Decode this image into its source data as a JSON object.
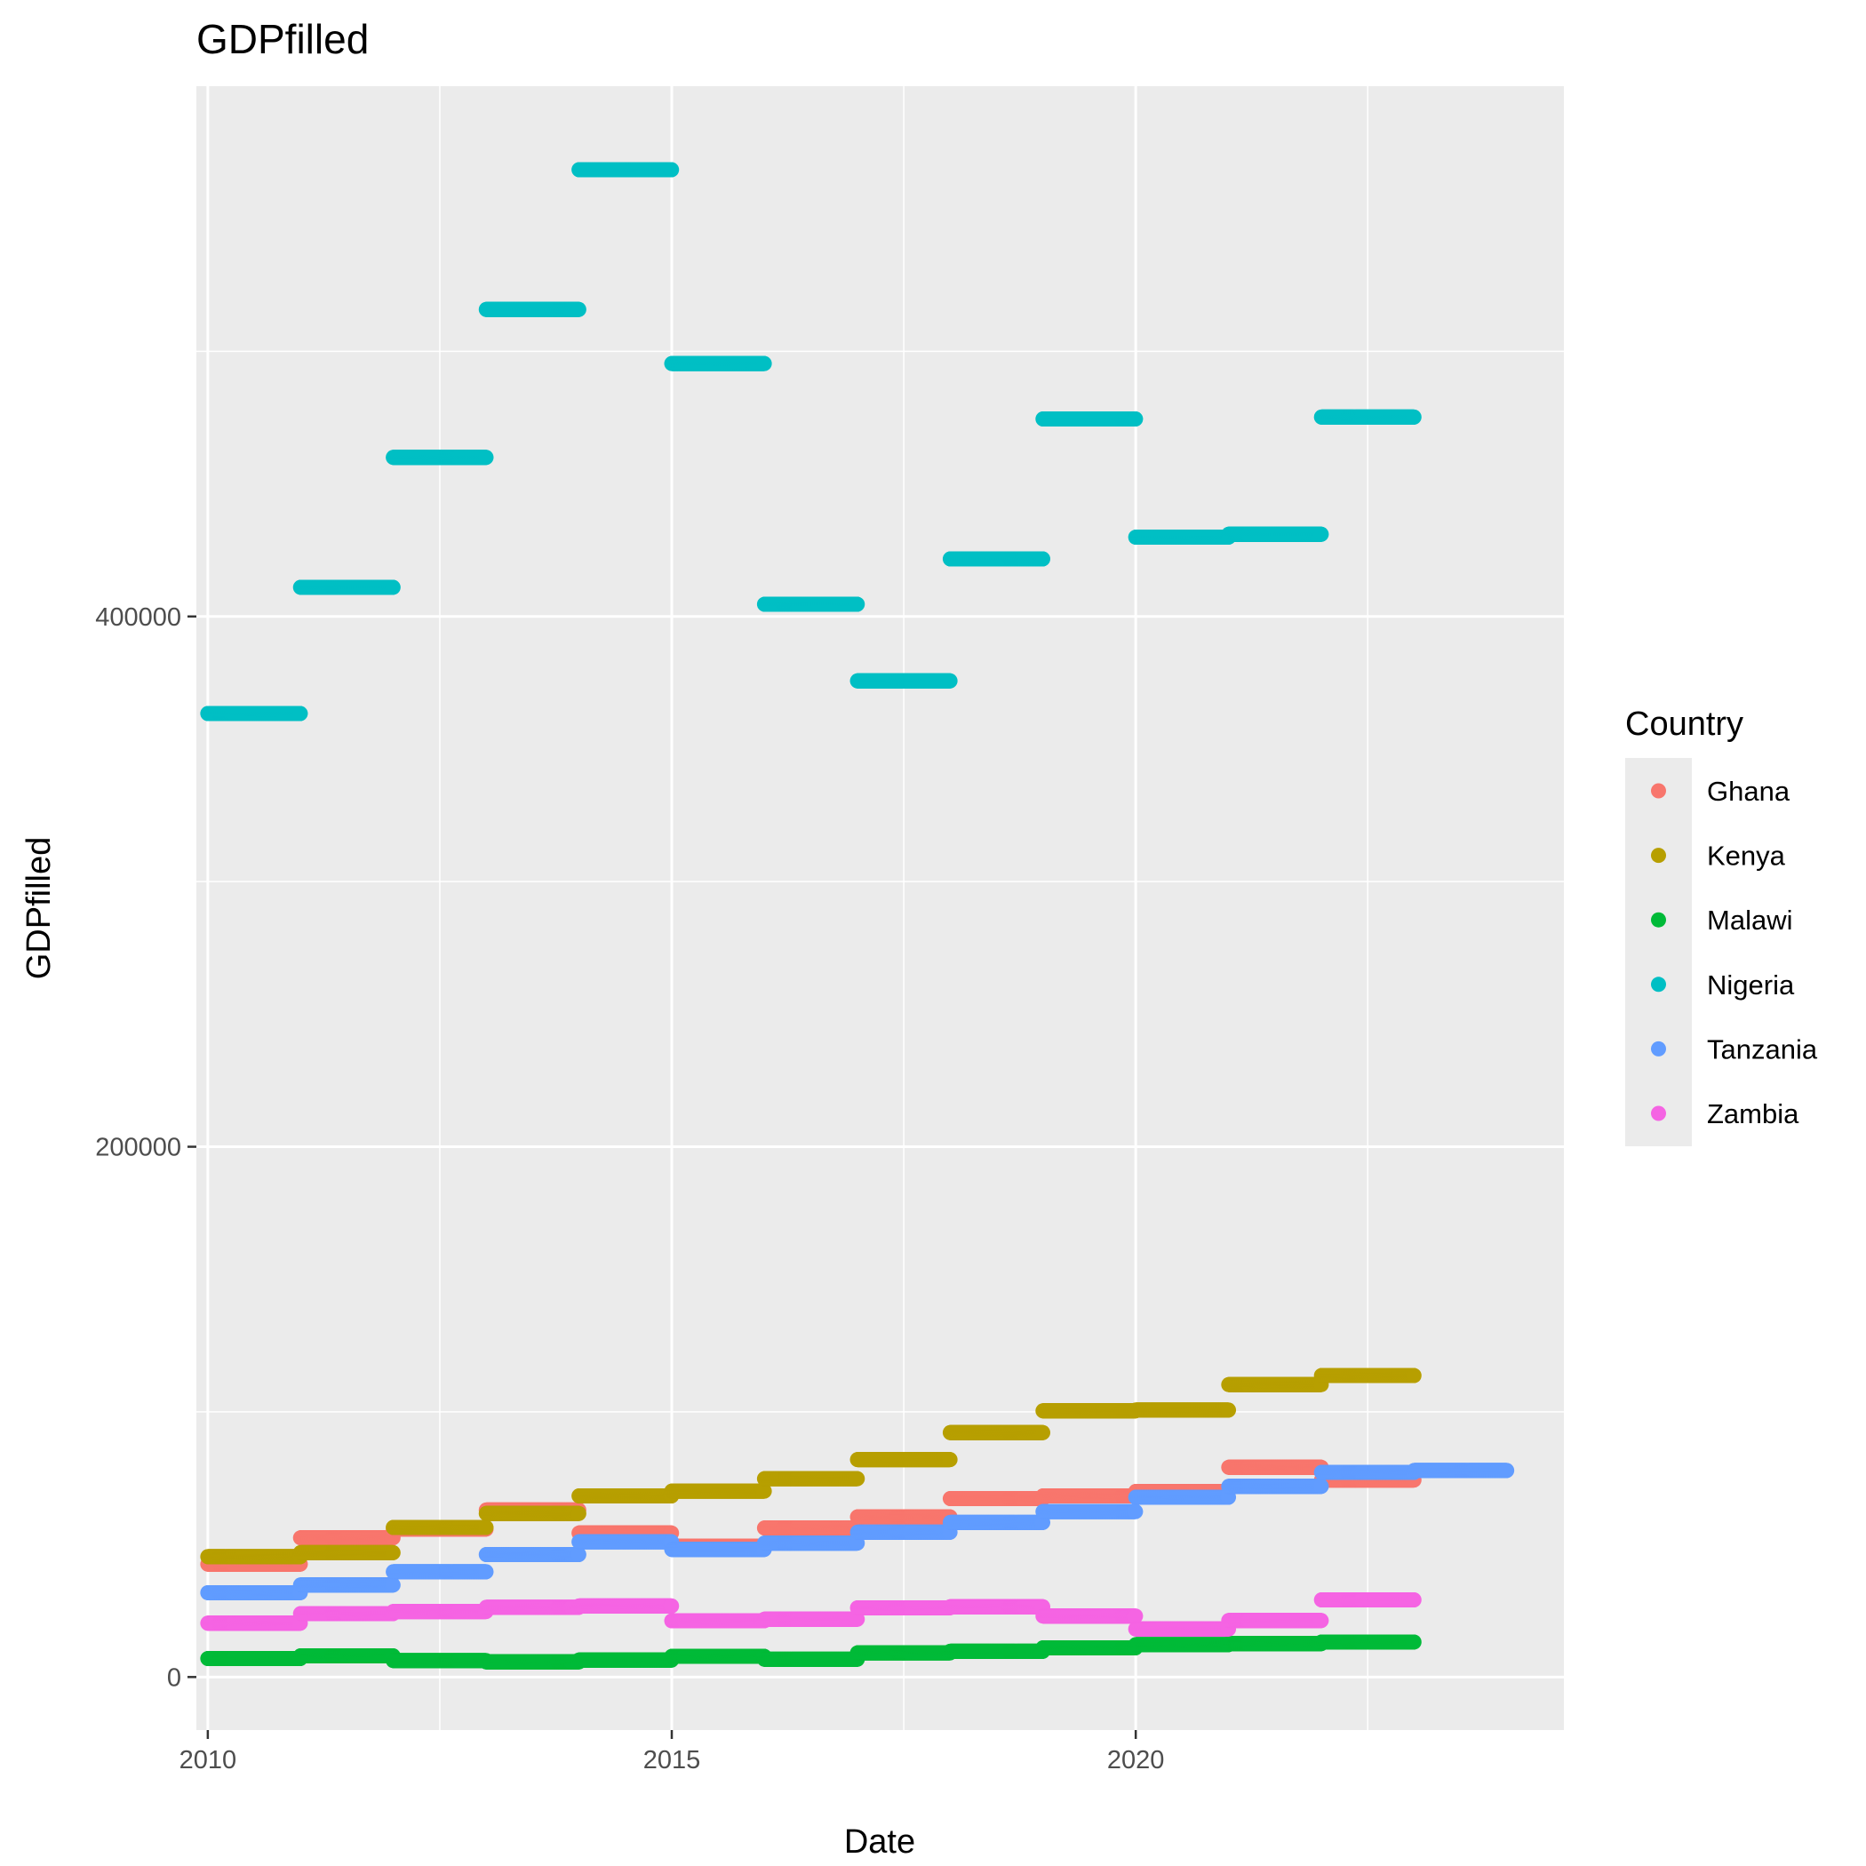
{
  "chart_data": {
    "type": "scatter",
    "title": "GDPfilled",
    "xlabel": "Date",
    "ylabel": "GDPfilled",
    "x_scale": "date",
    "xlim": [
      "2009-11-17",
      "2024-08-12"
    ],
    "ylim": [
      -20000,
      600000
    ],
    "x_ticks": [
      {
        "label": "2010",
        "date": "2010-01-01"
      },
      {
        "label": "2015",
        "date": "2015-01-01"
      },
      {
        "label": "2020",
        "date": "2020-01-01"
      }
    ],
    "y_ticks": [
      {
        "label": "0",
        "value": 0
      },
      {
        "label": "200000",
        "value": 200000
      },
      {
        "label": "400000",
        "value": 400000
      }
    ],
    "y_minor_gridlines": [
      100000,
      300000,
      500000
    ],
    "x_minor_gridlines": [
      "2012-07-02",
      "2017-07-02",
      "2022-07-02"
    ],
    "grid": true,
    "background": "#ebebeb",
    "legend": {
      "title": "Country",
      "position": "right"
    },
    "point_spacing": "daily",
    "series": [
      {
        "name": "Ghana",
        "color": "#F8766D",
        "segments": [
          {
            "start": "2010-01-01",
            "end": "2010-12-31",
            "value": 42600
          },
          {
            "start": "2011-01-01",
            "end": "2011-12-31",
            "value": 52500
          },
          {
            "start": "2012-01-01",
            "end": "2012-12-31",
            "value": 55800
          },
          {
            "start": "2013-01-01",
            "end": "2013-12-31",
            "value": 63000
          },
          {
            "start": "2014-01-01",
            "end": "2014-12-31",
            "value": 54300
          },
          {
            "start": "2015-01-01",
            "end": "2015-12-31",
            "value": 49300
          },
          {
            "start": "2016-01-01",
            "end": "2016-12-31",
            "value": 56200
          },
          {
            "start": "2017-01-01",
            "end": "2017-12-31",
            "value": 60400
          },
          {
            "start": "2018-01-01",
            "end": "2018-12-31",
            "value": 67300
          },
          {
            "start": "2019-01-01",
            "end": "2019-12-31",
            "value": 68300
          },
          {
            "start": "2020-01-01",
            "end": "2020-12-31",
            "value": 70000
          },
          {
            "start": "2021-01-01",
            "end": "2021-12-31",
            "value": 79100
          },
          {
            "start": "2022-01-01",
            "end": "2022-12-31",
            "value": 74300
          }
        ]
      },
      {
        "name": "Kenya",
        "color": "#B79F00",
        "segments": [
          {
            "start": "2010-01-01",
            "end": "2010-12-31",
            "value": 45400
          },
          {
            "start": "2011-01-01",
            "end": "2011-12-31",
            "value": 46900
          },
          {
            "start": "2012-01-01",
            "end": "2012-12-31",
            "value": 56400
          },
          {
            "start": "2013-01-01",
            "end": "2013-12-31",
            "value": 61700
          },
          {
            "start": "2014-01-01",
            "end": "2014-12-31",
            "value": 68300
          },
          {
            "start": "2015-01-01",
            "end": "2015-12-31",
            "value": 70100
          },
          {
            "start": "2016-01-01",
            "end": "2016-12-31",
            "value": 74800
          },
          {
            "start": "2017-01-01",
            "end": "2017-12-31",
            "value": 82000
          },
          {
            "start": "2018-01-01",
            "end": "2018-12-31",
            "value": 92200
          },
          {
            "start": "2019-01-01",
            "end": "2019-12-31",
            "value": 100400
          },
          {
            "start": "2020-01-01",
            "end": "2020-12-31",
            "value": 100700
          },
          {
            "start": "2021-01-01",
            "end": "2021-12-31",
            "value": 110300
          },
          {
            "start": "2022-01-01",
            "end": "2022-12-31",
            "value": 113700
          }
        ]
      },
      {
        "name": "Malawi",
        "color": "#00BA38",
        "segments": [
          {
            "start": "2010-01-01",
            "end": "2010-12-31",
            "value": 6960
          },
          {
            "start": "2011-01-01",
            "end": "2011-12-31",
            "value": 8000
          },
          {
            "start": "2012-01-01",
            "end": "2012-12-31",
            "value": 6200
          },
          {
            "start": "2013-01-01",
            "end": "2013-12-31",
            "value": 5700
          },
          {
            "start": "2014-01-01",
            "end": "2014-12-31",
            "value": 6400
          },
          {
            "start": "2015-01-01",
            "end": "2015-12-31",
            "value": 7800
          },
          {
            "start": "2016-01-01",
            "end": "2016-12-31",
            "value": 6700
          },
          {
            "start": "2017-01-01",
            "end": "2017-12-31",
            "value": 9100
          },
          {
            "start": "2018-01-01",
            "end": "2018-12-31",
            "value": 9700
          },
          {
            "start": "2019-01-01",
            "end": "2019-12-31",
            "value": 11000
          },
          {
            "start": "2020-01-01",
            "end": "2020-12-31",
            "value": 12200
          },
          {
            "start": "2021-01-01",
            "end": "2021-12-31",
            "value": 12600
          },
          {
            "start": "2022-01-01",
            "end": "2022-12-31",
            "value": 13200
          }
        ]
      },
      {
        "name": "Nigeria",
        "color": "#00BFC4",
        "segments": [
          {
            "start": "2010-01-01",
            "end": "2010-12-31",
            "value": 363400
          },
          {
            "start": "2011-01-01",
            "end": "2011-12-31",
            "value": 411000
          },
          {
            "start": "2012-01-01",
            "end": "2012-12-31",
            "value": 460000
          },
          {
            "start": "2013-01-01",
            "end": "2013-12-31",
            "value": 515800
          },
          {
            "start": "2014-01-01",
            "end": "2014-12-31",
            "value": 568500
          },
          {
            "start": "2015-01-01",
            "end": "2015-12-31",
            "value": 495400
          },
          {
            "start": "2016-01-01",
            "end": "2016-12-31",
            "value": 404600
          },
          {
            "start": "2017-01-01",
            "end": "2017-12-31",
            "value": 375700
          },
          {
            "start": "2018-01-01",
            "end": "2018-12-31",
            "value": 421700
          },
          {
            "start": "2019-01-01",
            "end": "2019-12-31",
            "value": 474500
          },
          {
            "start": "2020-01-01",
            "end": "2020-12-31",
            "value": 429900
          },
          {
            "start": "2021-01-01",
            "end": "2021-12-31",
            "value": 431000
          },
          {
            "start": "2022-01-01",
            "end": "2022-12-31",
            "value": 475200
          }
        ]
      },
      {
        "name": "Tanzania",
        "color": "#619CFF",
        "segments": [
          {
            "start": "2010-01-01",
            "end": "2010-12-31",
            "value": 31800
          },
          {
            "start": "2011-01-01",
            "end": "2011-12-31",
            "value": 34700
          },
          {
            "start": "2012-01-01",
            "end": "2012-12-31",
            "value": 39700
          },
          {
            "start": "2013-01-01",
            "end": "2013-12-31",
            "value": 46200
          },
          {
            "start": "2014-01-01",
            "end": "2014-12-31",
            "value": 51000
          },
          {
            "start": "2015-01-01",
            "end": "2015-12-31",
            "value": 48100
          },
          {
            "start": "2016-01-01",
            "end": "2016-12-31",
            "value": 50500
          },
          {
            "start": "2017-01-01",
            "end": "2017-12-31",
            "value": 54600
          },
          {
            "start": "2018-01-01",
            "end": "2018-12-31",
            "value": 58300
          },
          {
            "start": "2019-01-01",
            "end": "2019-12-31",
            "value": 62400
          },
          {
            "start": "2020-01-01",
            "end": "2020-12-31",
            "value": 67800
          },
          {
            "start": "2021-01-01",
            "end": "2021-12-31",
            "value": 71900
          },
          {
            "start": "2022-01-01",
            "end": "2022-12-31",
            "value": 77200
          },
          {
            "start": "2023-01-01",
            "end": "2023-12-31",
            "value": 77900
          }
        ]
      },
      {
        "name": "Zambia",
        "color": "#F564E3",
        "segments": [
          {
            "start": "2010-01-01",
            "end": "2010-12-31",
            "value": 20300
          },
          {
            "start": "2011-01-01",
            "end": "2011-12-31",
            "value": 23900
          },
          {
            "start": "2012-01-01",
            "end": "2012-12-31",
            "value": 24700
          },
          {
            "start": "2013-01-01",
            "end": "2013-12-31",
            "value": 26300
          },
          {
            "start": "2014-01-01",
            "end": "2014-12-31",
            "value": 26800
          },
          {
            "start": "2015-01-01",
            "end": "2015-12-31",
            "value": 21200
          },
          {
            "start": "2016-01-01",
            "end": "2016-12-31",
            "value": 21800
          },
          {
            "start": "2017-01-01",
            "end": "2017-12-31",
            "value": 26100
          },
          {
            "start": "2018-01-01",
            "end": "2018-12-31",
            "value": 26500
          },
          {
            "start": "2019-01-01",
            "end": "2019-12-31",
            "value": 23000
          },
          {
            "start": "2020-01-01",
            "end": "2020-12-31",
            "value": 18100
          },
          {
            "start": "2021-01-01",
            "end": "2021-12-31",
            "value": 21300
          },
          {
            "start": "2022-01-01",
            "end": "2022-12-31",
            "value": 29100
          }
        ]
      }
    ]
  }
}
